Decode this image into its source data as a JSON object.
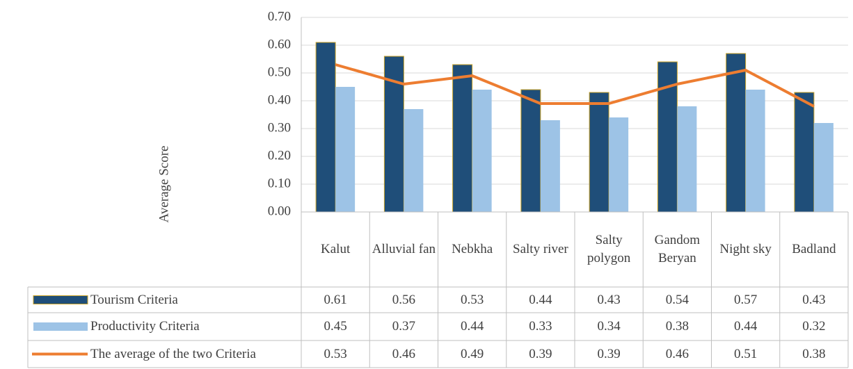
{
  "chart_data": {
    "type": "bar",
    "y_label": "Average Score",
    "categories": [
      "Kalut",
      "Alluvial fan",
      "Nebkha",
      "Salty river",
      "Salty polygon",
      "Gandom Beryan",
      "Night sky",
      "Badland"
    ],
    "series": [
      {
        "name": "Tourism Criteria",
        "type": "bar",
        "color": "#1f4e79",
        "values": [
          0.61,
          0.56,
          0.53,
          0.44,
          0.43,
          0.54,
          0.57,
          0.43
        ]
      },
      {
        "name": "Productivity Criteria",
        "type": "bar",
        "color": "#9dc3e6",
        "values": [
          0.45,
          0.37,
          0.44,
          0.33,
          0.34,
          0.38,
          0.44,
          0.32
        ]
      },
      {
        "name": "The average of the two Criteria",
        "type": "line",
        "color": "#ed7d31",
        "values": [
          0.53,
          0.46,
          0.49,
          0.39,
          0.39,
          0.46,
          0.51,
          0.38
        ]
      }
    ],
    "ylim": [
      0,
      0.7
    ],
    "yticks": [
      {
        "value": 0,
        "label": "0.00"
      },
      {
        "value": 0.1,
        "label": "0.10"
      },
      {
        "value": 0.2,
        "label": "0.20"
      },
      {
        "value": 0.3,
        "label": "0.30"
      },
      {
        "value": 0.4,
        "label": "0.40"
      },
      {
        "value": 0.5,
        "label": "0.50"
      },
      {
        "value": 0.6,
        "label": "0.60"
      },
      {
        "value": 0.7,
        "label": "0.70"
      }
    ],
    "grid": true,
    "data_table": true
  }
}
